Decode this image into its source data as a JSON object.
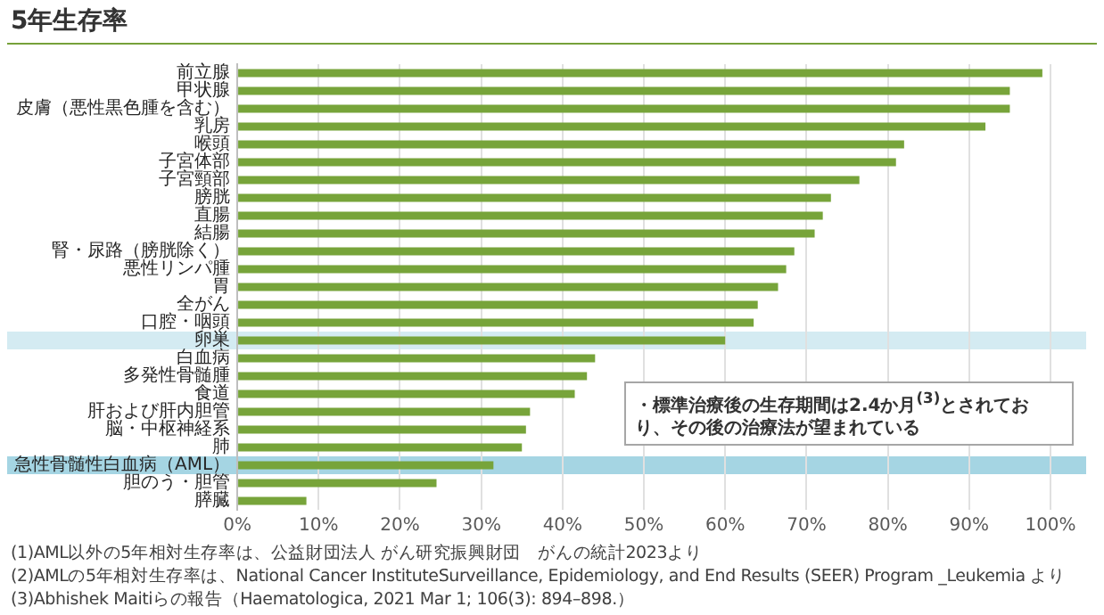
{
  "chart_data": {
    "type": "bar",
    "orientation": "horizontal",
    "title": "5年生存率",
    "categories": [
      "前立腺",
      "甲状腺",
      "皮膚（悪性黒色腫を含む）",
      "乳房",
      "喉頭",
      "子宮体部",
      "子宮頸部",
      "膀胱",
      "直腸",
      "結腸",
      "腎・尿路（膀胱除く）",
      "悪性リンパ腫",
      "胃",
      "全がん",
      "口腔・咽頭",
      "卵巣",
      "白血病",
      "多発性骨髄腫",
      "食道",
      "肝および肝内胆管",
      "脳・中枢神経系",
      "肺",
      "急性骨髄性白血病（AML）",
      "胆のう・胆管",
      "膵臓"
    ],
    "values": [
      99,
      95,
      95,
      92,
      82,
      81,
      76.5,
      73,
      72,
      71,
      68.5,
      67.5,
      66.5,
      64,
      63.5,
      60,
      44,
      43,
      41.5,
      36,
      35.5,
      35,
      31.5,
      24.5,
      8.5
    ],
    "color": "#77a43a",
    "xlim": [
      0,
      100
    ],
    "xticks": [
      {
        "value": 0,
        "label": "0%"
      },
      {
        "value": 10,
        "label": "10%"
      },
      {
        "value": 20,
        "label": "20%"
      },
      {
        "value": 30,
        "label": "30%"
      },
      {
        "value": 40,
        "label": "40%"
      },
      {
        "value": 50,
        "label": "50%"
      },
      {
        "value": 60,
        "label": "60%"
      },
      {
        "value": 70,
        "label": "70%"
      },
      {
        "value": 80,
        "label": "80%"
      },
      {
        "value": 90,
        "label": "90%"
      },
      {
        "value": 100,
        "label": "100%"
      }
    ],
    "grid": "x",
    "bands": [
      {
        "axis": "y",
        "from": "卵巣",
        "to": "卵巣",
        "color": "#d4ebf2"
      },
      {
        "axis": "y",
        "from": "急性骨髄性白血病（AML）",
        "to": "急性骨髄性白血病（AML）",
        "color": "#a5d5e3"
      }
    ],
    "annotations": [
      "・標準治療後の生存期間は2.4か月$^{(3)}$とされており、その後の治療法が望まれている",
      "(1)AML以外の5年相対生存率は、公益財団法人 がん研究振興財団　がんの統計2023より",
      "(2)AMLの5年相対生存率は、National Cancer InstituteSurveillance, Epidemiology, and End Results (SEER) Program _Leukemia より",
      "(3)Abhishek Maitiらの報告（Haematologica, 2021 Mar 1; 106(3): 894–898.）"
    ]
  }
}
